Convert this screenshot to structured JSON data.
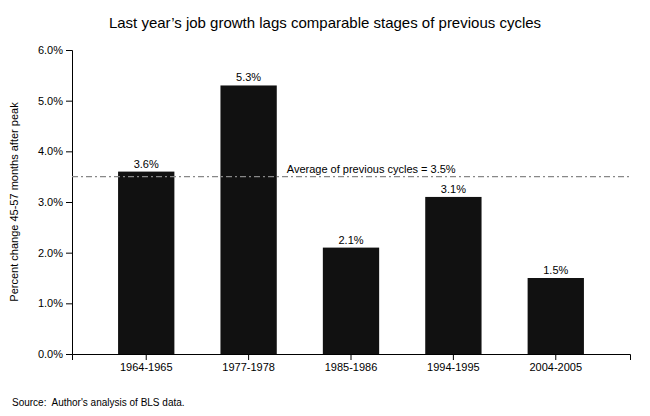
{
  "chart_data": {
    "type": "bar",
    "title": "Last year’s job growth lags comparable stages of previous cycles",
    "categories": [
      "1964-1965",
      "1977-1978",
      "1985-1986",
      "1994-1995",
      "2004-2005"
    ],
    "values": [
      3.6,
      5.3,
      2.1,
      3.1,
      1.5
    ],
    "value_labels": [
      "3.6%",
      "5.3%",
      "2.1%",
      "3.1%",
      "1.5%"
    ],
    "data_labels": true,
    "color": "#111111",
    "ylabel": "Percent change 45-57 months after peak",
    "ylim": [
      0,
      6.0
    ],
    "yticks": [
      {
        "value": 0.0,
        "label": "0.0%"
      },
      {
        "value": 1.0,
        "label": "1.0%"
      },
      {
        "value": 2.0,
        "label": "2.0%"
      },
      {
        "value": 3.0,
        "label": "3.0%"
      },
      {
        "value": 4.0,
        "label": "4.0%"
      },
      {
        "value": 5.0,
        "label": "5.0%"
      },
      {
        "value": 6.0,
        "label": "6.0%"
      }
    ],
    "avg_line": {
      "value": 3.5,
      "label": "Average of previous cycles = 3.5%"
    },
    "source": "Source:  Author's analysis of BLS data.",
    "grid": false
  }
}
